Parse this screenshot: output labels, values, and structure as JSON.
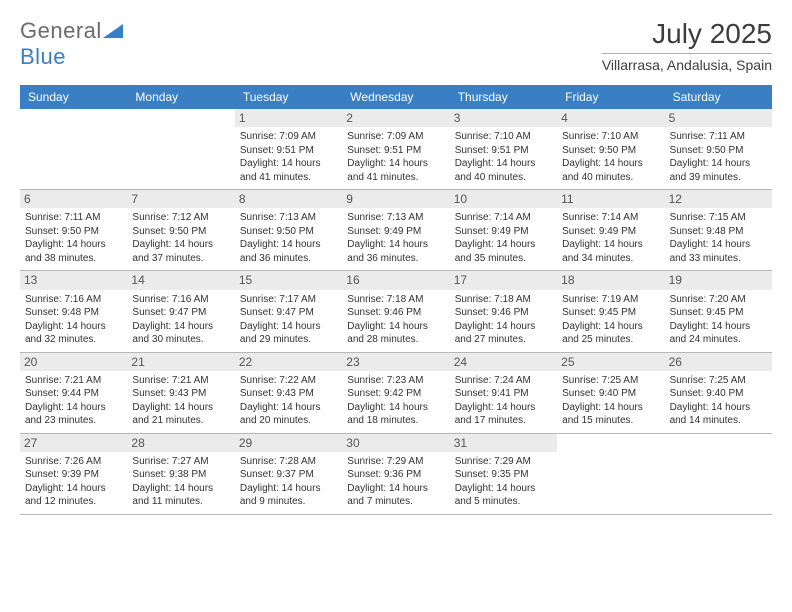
{
  "logo": {
    "text_part1": "General",
    "text_part2": "Blue",
    "accent_color": "#3a7fc4"
  },
  "header": {
    "month_title": "July 2025",
    "location": "Villarrasa, Andalusia, Spain"
  },
  "colors": {
    "header_bar": "#3a7fc4",
    "header_text": "#ffffff",
    "day_number_bg": "#ecebeb",
    "border": "#b8b8b8"
  },
  "weekdays": [
    "Sunday",
    "Monday",
    "Tuesday",
    "Wednesday",
    "Thursday",
    "Friday",
    "Saturday"
  ],
  "weeks": [
    [
      null,
      null,
      {
        "n": "1",
        "sr": "7:09 AM",
        "ss": "9:51 PM",
        "dh": "14",
        "dm": "41"
      },
      {
        "n": "2",
        "sr": "7:09 AM",
        "ss": "9:51 PM",
        "dh": "14",
        "dm": "41"
      },
      {
        "n": "3",
        "sr": "7:10 AM",
        "ss": "9:51 PM",
        "dh": "14",
        "dm": "40"
      },
      {
        "n": "4",
        "sr": "7:10 AM",
        "ss": "9:50 PM",
        "dh": "14",
        "dm": "40"
      },
      {
        "n": "5",
        "sr": "7:11 AM",
        "ss": "9:50 PM",
        "dh": "14",
        "dm": "39"
      }
    ],
    [
      {
        "n": "6",
        "sr": "7:11 AM",
        "ss": "9:50 PM",
        "dh": "14",
        "dm": "38"
      },
      {
        "n": "7",
        "sr": "7:12 AM",
        "ss": "9:50 PM",
        "dh": "14",
        "dm": "37"
      },
      {
        "n": "8",
        "sr": "7:13 AM",
        "ss": "9:50 PM",
        "dh": "14",
        "dm": "36"
      },
      {
        "n": "9",
        "sr": "7:13 AM",
        "ss": "9:49 PM",
        "dh": "14",
        "dm": "36"
      },
      {
        "n": "10",
        "sr": "7:14 AM",
        "ss": "9:49 PM",
        "dh": "14",
        "dm": "35"
      },
      {
        "n": "11",
        "sr": "7:14 AM",
        "ss": "9:49 PM",
        "dh": "14",
        "dm": "34"
      },
      {
        "n": "12",
        "sr": "7:15 AM",
        "ss": "9:48 PM",
        "dh": "14",
        "dm": "33"
      }
    ],
    [
      {
        "n": "13",
        "sr": "7:16 AM",
        "ss": "9:48 PM",
        "dh": "14",
        "dm": "32"
      },
      {
        "n": "14",
        "sr": "7:16 AM",
        "ss": "9:47 PM",
        "dh": "14",
        "dm": "30"
      },
      {
        "n": "15",
        "sr": "7:17 AM",
        "ss": "9:47 PM",
        "dh": "14",
        "dm": "29"
      },
      {
        "n": "16",
        "sr": "7:18 AM",
        "ss": "9:46 PM",
        "dh": "14",
        "dm": "28"
      },
      {
        "n": "17",
        "sr": "7:18 AM",
        "ss": "9:46 PM",
        "dh": "14",
        "dm": "27"
      },
      {
        "n": "18",
        "sr": "7:19 AM",
        "ss": "9:45 PM",
        "dh": "14",
        "dm": "25"
      },
      {
        "n": "19",
        "sr": "7:20 AM",
        "ss": "9:45 PM",
        "dh": "14",
        "dm": "24"
      }
    ],
    [
      {
        "n": "20",
        "sr": "7:21 AM",
        "ss": "9:44 PM",
        "dh": "14",
        "dm": "23"
      },
      {
        "n": "21",
        "sr": "7:21 AM",
        "ss": "9:43 PM",
        "dh": "14",
        "dm": "21"
      },
      {
        "n": "22",
        "sr": "7:22 AM",
        "ss": "9:43 PM",
        "dh": "14",
        "dm": "20"
      },
      {
        "n": "23",
        "sr": "7:23 AM",
        "ss": "9:42 PM",
        "dh": "14",
        "dm": "18"
      },
      {
        "n": "24",
        "sr": "7:24 AM",
        "ss": "9:41 PM",
        "dh": "14",
        "dm": "17"
      },
      {
        "n": "25",
        "sr": "7:25 AM",
        "ss": "9:40 PM",
        "dh": "14",
        "dm": "15"
      },
      {
        "n": "26",
        "sr": "7:25 AM",
        "ss": "9:40 PM",
        "dh": "14",
        "dm": "14"
      }
    ],
    [
      {
        "n": "27",
        "sr": "7:26 AM",
        "ss": "9:39 PM",
        "dh": "14",
        "dm": "12"
      },
      {
        "n": "28",
        "sr": "7:27 AM",
        "ss": "9:38 PM",
        "dh": "14",
        "dm": "11"
      },
      {
        "n": "29",
        "sr": "7:28 AM",
        "ss": "9:37 PM",
        "dh": "14",
        "dm": "9"
      },
      {
        "n": "30",
        "sr": "7:29 AM",
        "ss": "9:36 PM",
        "dh": "14",
        "dm": "7"
      },
      {
        "n": "31",
        "sr": "7:29 AM",
        "ss": "9:35 PM",
        "dh": "14",
        "dm": "5"
      },
      null,
      null
    ]
  ],
  "labels": {
    "sunrise_prefix": "Sunrise: ",
    "sunset_prefix": "Sunset: ",
    "daylight_prefix": "Daylight: ",
    "hours_word": " hours",
    "and_word": "and ",
    "minutes_word": " minutes."
  }
}
